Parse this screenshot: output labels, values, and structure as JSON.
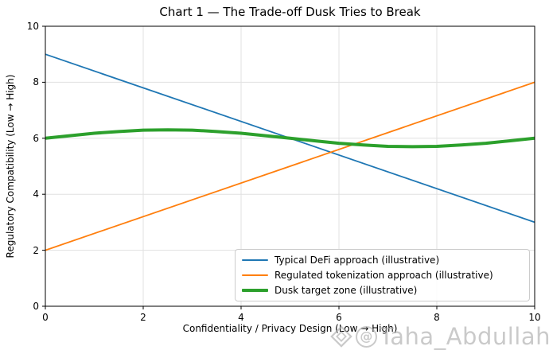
{
  "figure": {
    "watermark": {
      "at_symbol": "@",
      "handle": "Taha_Abdullah"
    }
  },
  "chart_data": {
    "type": "line",
    "title": "Chart 1 — The Trade-off Dusk Tries to Break",
    "xlabel": "Confidentiality / Privacy Design (Low → High)",
    "ylabel": "Regulatory Compatibility (Low → High)",
    "xlim": [
      0,
      10
    ],
    "ylim": [
      0,
      10
    ],
    "xticks": [
      0,
      2,
      4,
      6,
      8,
      10
    ],
    "yticks": [
      0,
      2,
      4,
      6,
      8,
      10
    ],
    "grid": true,
    "grid_color": "#e0e0e0",
    "spine_color": "#000000",
    "legend_position": "lower right inside axes",
    "series": [
      {
        "name": "Typical DeFi approach (illustrative)",
        "color": "#1f77b4",
        "line_width": 1.8,
        "x": [
          0,
          10
        ],
        "y": [
          9,
          3
        ]
      },
      {
        "name": "Regulated tokenization approach (illustrative)",
        "color": "#ff7f0e",
        "line_width": 1.8,
        "x": [
          0,
          10
        ],
        "y": [
          2,
          8
        ]
      },
      {
        "name": "Dusk target zone (illustrative)",
        "color": "#2ca02c",
        "line_width": 4,
        "x": [
          0,
          0.5,
          1,
          1.5,
          2,
          2.5,
          3,
          3.5,
          4,
          4.5,
          5,
          5.5,
          6,
          6.5,
          7,
          7.5,
          8,
          8.5,
          9,
          9.5,
          10
        ],
        "y": [
          6.0,
          6.09,
          6.18,
          6.24,
          6.29,
          6.3,
          6.29,
          6.24,
          6.18,
          6.09,
          6.0,
          5.91,
          5.82,
          5.76,
          5.71,
          5.7,
          5.71,
          5.76,
          5.82,
          5.91,
          6.0
        ]
      }
    ]
  }
}
